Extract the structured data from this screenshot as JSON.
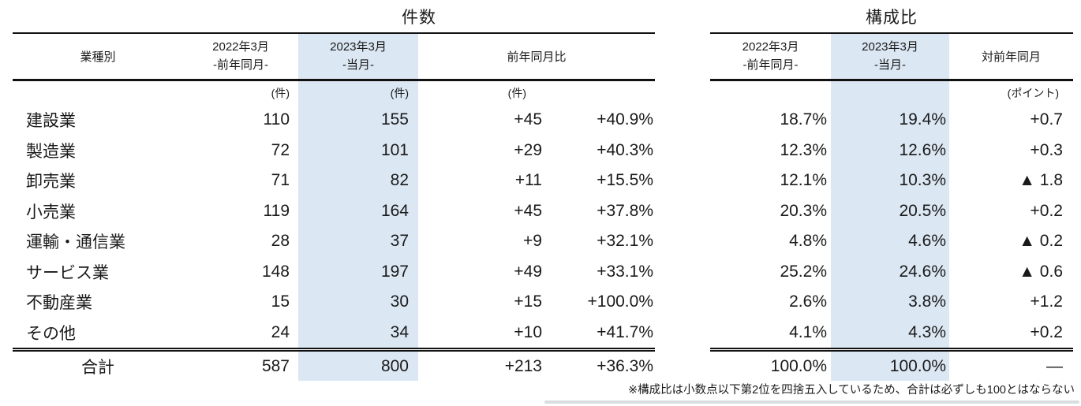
{
  "chart_data": {
    "type": "table",
    "footnote": "※構成比は小数点以下第2位を四捨五入しているため、合計は必ずしも100とはならない",
    "counts": {
      "title": "件数",
      "industry_label": "業種別",
      "col_prev": {
        "l1": "2022年3月",
        "l2": "-前年同月-",
        "unit": "(件)"
      },
      "col_cur": {
        "l1": "2023年3月",
        "l2": "-当月-",
        "unit": "(件)"
      },
      "col_yoy": {
        "label": "前年同月比",
        "unit": "(件)"
      },
      "rows": [
        {
          "name": "建設業",
          "prev": 110,
          "cur": 155,
          "diff": "+45",
          "pct": "+40.9%"
        },
        {
          "name": "製造業",
          "prev": 72,
          "cur": 101,
          "diff": "+29",
          "pct": "+40.3%"
        },
        {
          "name": "卸売業",
          "prev": 71,
          "cur": 82,
          "diff": "+11",
          "pct": "+15.5%"
        },
        {
          "name": "小売業",
          "prev": 119,
          "cur": 164,
          "diff": "+45",
          "pct": "+37.8%"
        },
        {
          "name": "運輸・通信業",
          "prev": 28,
          "cur": 37,
          "diff": "+9",
          "pct": "+32.1%"
        },
        {
          "name": "サービス業",
          "prev": 148,
          "cur": 197,
          "diff": "+49",
          "pct": "+33.1%"
        },
        {
          "name": "不動産業",
          "prev": 15,
          "cur": 30,
          "diff": "+15",
          "pct": "+100.0%"
        },
        {
          "name": "その他",
          "prev": 24,
          "cur": 34,
          "diff": "+10",
          "pct": "+41.7%"
        }
      ],
      "total": {
        "name": "合計",
        "prev": 587,
        "cur": 800,
        "diff": "+213",
        "pct": "+36.3%"
      }
    },
    "share": {
      "title": "構成比",
      "col_prev": {
        "l1": "2022年3月",
        "l2": "-前年同月-"
      },
      "col_cur": {
        "l1": "2023年3月",
        "l2": "-当月-"
      },
      "col_diff": {
        "label": "対前年同月",
        "unit": "(ポイント)"
      },
      "rows": [
        {
          "prev": "18.7%",
          "cur": "19.4%",
          "diff": "+0.7"
        },
        {
          "prev": "12.3%",
          "cur": "12.6%",
          "diff": "+0.3"
        },
        {
          "prev": "12.1%",
          "cur": "10.3%",
          "diff": "▲ 1.8"
        },
        {
          "prev": "20.3%",
          "cur": "20.5%",
          "diff": "+0.2"
        },
        {
          "prev": "4.8%",
          "cur": "4.6%",
          "diff": "▲ 0.2"
        },
        {
          "prev": "25.2%",
          "cur": "24.6%",
          "diff": "▲ 0.6"
        },
        {
          "prev": "2.6%",
          "cur": "3.8%",
          "diff": "+1.2"
        },
        {
          "prev": "4.1%",
          "cur": "4.3%",
          "diff": "+0.2"
        }
      ],
      "total": {
        "prev": "100.0%",
        "cur": "100.0%",
        "diff": "—"
      }
    }
  },
  "accent_color": "#dbe7f3"
}
